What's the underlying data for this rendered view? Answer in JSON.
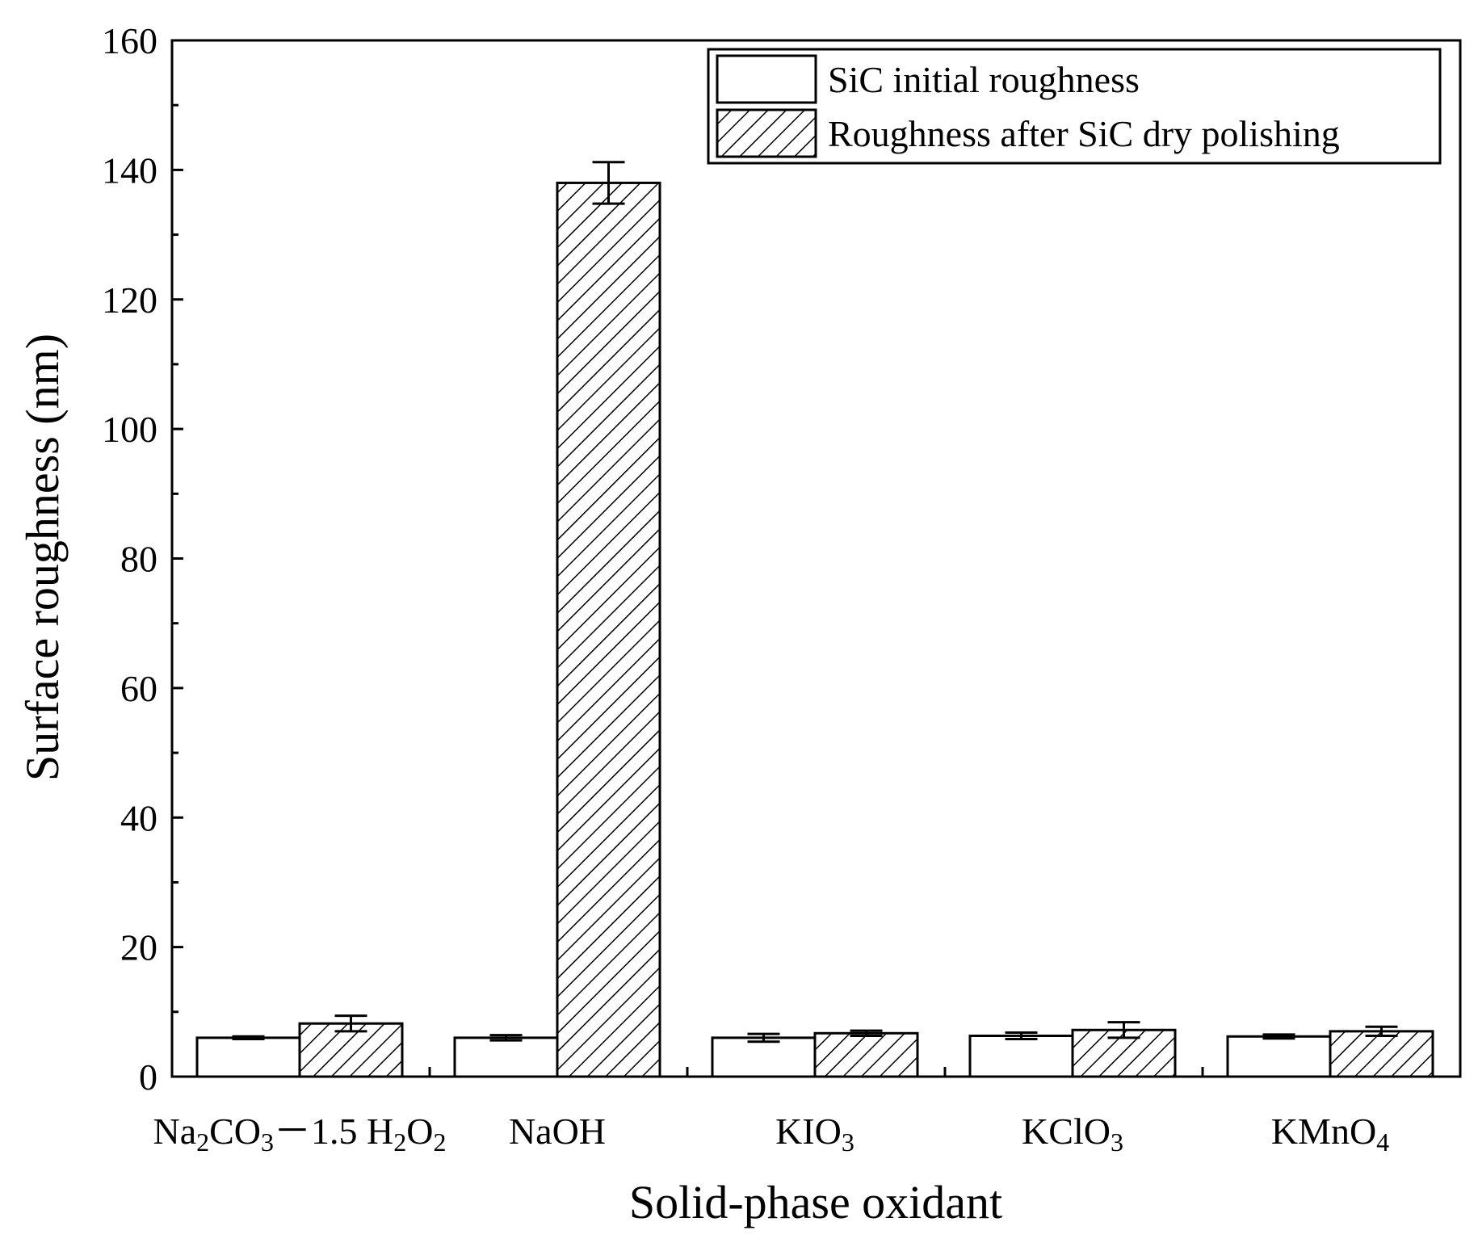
{
  "chart_data": {
    "type": "bar",
    "xlabel": "Solid-phase oxidant",
    "ylabel": "Surface roughness (nm)",
    "ylim": [
      0,
      160
    ],
    "yticks": [
      0,
      20,
      40,
      60,
      80,
      100,
      120,
      140,
      160
    ],
    "categories": [
      {
        "parts": [
          [
            "Na",
            ""
          ],
          [
            "2",
            "sub"
          ],
          [
            "CO",
            ""
          ],
          [
            "3",
            "sub"
          ],
          [
            "－1.5 H",
            ""
          ],
          [
            "2",
            "sub"
          ],
          [
            "O",
            ""
          ],
          [
            "2",
            "sub"
          ]
        ]
      },
      {
        "parts": [
          [
            "NaOH",
            ""
          ]
        ]
      },
      {
        "parts": [
          [
            "KIO",
            ""
          ],
          [
            "3",
            "sub"
          ]
        ]
      },
      {
        "parts": [
          [
            "KClO",
            ""
          ],
          [
            "3",
            "sub"
          ]
        ]
      },
      {
        "parts": [
          [
            "KMnO",
            ""
          ],
          [
            "4",
            "sub"
          ]
        ]
      }
    ],
    "series": [
      {
        "name": "SiC initial roughness",
        "pattern": "none",
        "values": [
          6.0,
          6.0,
          6.0,
          6.3,
          6.2
        ],
        "errors": [
          0.2,
          0.4,
          0.6,
          0.5,
          0.3
        ]
      },
      {
        "name": "Roughness after SiC dry polishing",
        "pattern": "hatch",
        "values": [
          8.2,
          138.0,
          6.7,
          7.2,
          7.0
        ],
        "errors": [
          1.2,
          3.2,
          0.4,
          1.2,
          0.7
        ]
      }
    ],
    "legend_position": "top-right",
    "grid": false,
    "colors": {
      "fill": "#ffffff",
      "stroke": "#000000"
    }
  }
}
